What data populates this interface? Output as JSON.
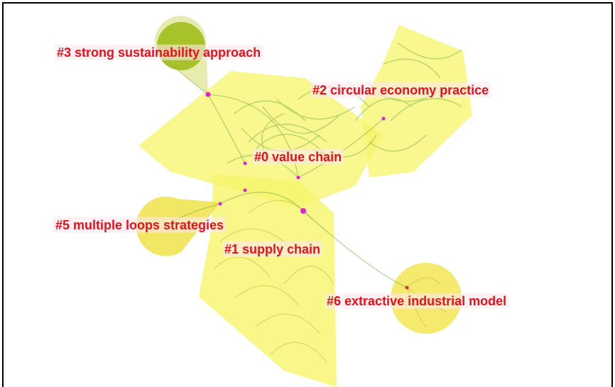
{
  "clusters": [
    {
      "label": "#3 strong sustainability approach"
    },
    {
      "label": "#2 circular economy practice"
    },
    {
      "label": "#0 value chain"
    },
    {
      "label": "#5 multiple loops strategies"
    },
    {
      "label": "#1 supply chain"
    },
    {
      "label": "#6 extractive industrial model"
    }
  ]
}
